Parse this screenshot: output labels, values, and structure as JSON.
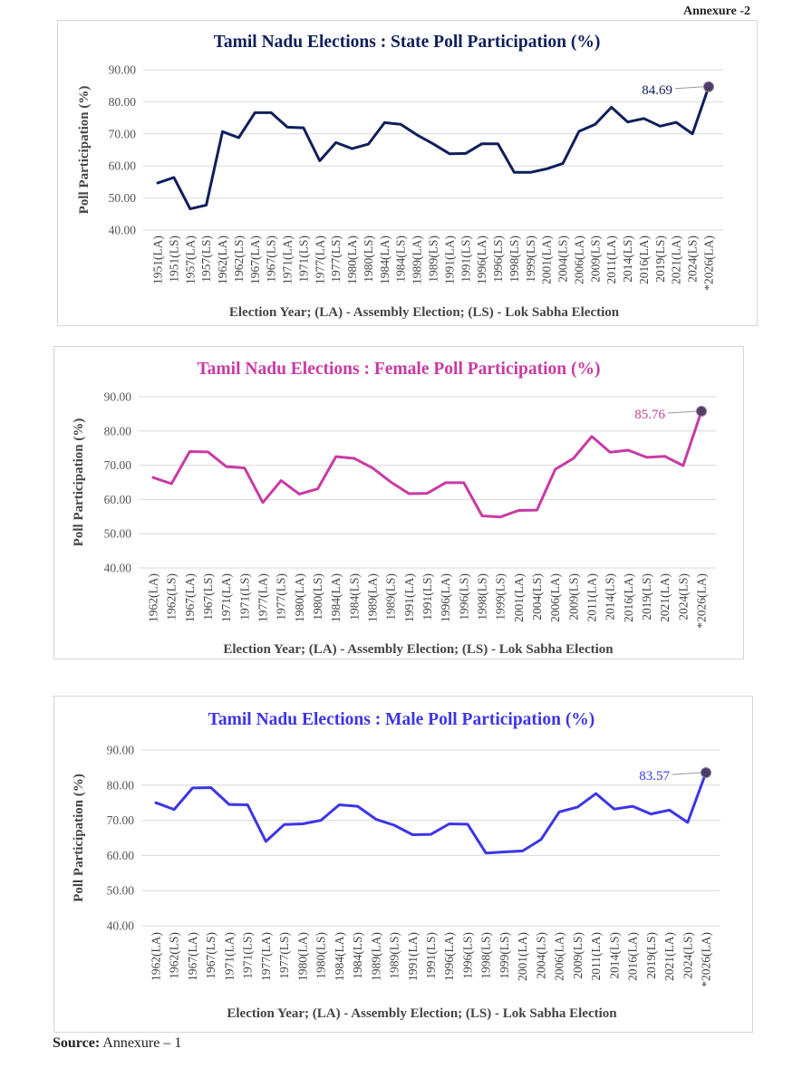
{
  "annexure": "Annexure -2",
  "source": {
    "label": "Source:",
    "text": "Annexure – 1"
  },
  "chart_data": [
    {
      "type": "line",
      "title": "Tamil Nadu Elections : State Poll Participation (%)",
      "xlabel": "Election Year; (LA) - Assembly Election; (LS) - Lok Sabha Election",
      "ylabel": "Poll Participation (%)",
      "ylim": [
        40,
        90
      ],
      "yticks": [
        "40.00",
        "50.00",
        "60.00",
        "70.00",
        "80.00",
        "90.00"
      ],
      "grid": true,
      "color": "#0f1f5c",
      "categories": [
        "1951(LA)",
        "1951(LS)",
        "1957(LA)",
        "1957(LS)",
        "1962(LA)",
        "1962(LS)",
        "1967(LA)",
        "1967(LS)",
        "1971(LA)",
        "1971(LS)",
        "1977(LA)",
        "1977(LS)",
        "1980(LA)",
        "1980(LS)",
        "1984(LA)",
        "1984(LS)",
        "1989(LA)",
        "1989(LS)",
        "1991(LA)",
        "1991(LS)",
        "1996(LA)",
        "1996(LS)",
        "1998(LS)",
        "1999(LS)",
        "2001(LA)",
        "2004(LS)",
        "2006(LA)",
        "2009(LS)",
        "2011(LA)",
        "2014(LS)",
        "2016(LA)",
        "2019(LS)",
        "2021(LA)",
        "2024(LS)",
        "*2026(LA)"
      ],
      "values": [
        54.7,
        56.4,
        46.6,
        47.8,
        70.7,
        68.8,
        76.6,
        76.6,
        72.1,
        71.9,
        61.6,
        67.3,
        65.4,
        66.8,
        73.5,
        73.0,
        69.7,
        66.9,
        63.8,
        63.9,
        66.9,
        66.9,
        58.0,
        58.0,
        59.1,
        60.8,
        70.8,
        73.0,
        78.3,
        73.7,
        74.8,
        72.4,
        73.6,
        70.0,
        84.69
      ],
      "last_label": "84.69"
    },
    {
      "type": "line",
      "title": "Tamil Nadu Elections : Female Poll Participation (%)",
      "xlabel": "Election Year; (LA) - Assembly Election; (LS) - Lok Sabha Election",
      "ylabel": "Poll Participation (%)",
      "ylim": [
        40,
        90
      ],
      "yticks": [
        "40.00",
        "50.00",
        "60.00",
        "70.00",
        "80.00",
        "90.00"
      ],
      "grid": true,
      "color": "#c93aa4",
      "categories": [
        "1962(LA)",
        "1962(LS)",
        "1967(LA)",
        "1967(LS)",
        "1971(LA)",
        "1971(LS)",
        "1977(LA)",
        "1977(LS)",
        "1980(LA)",
        "1980(LS)",
        "1984(LA)",
        "1984(LS)",
        "1989(LA)",
        "1989(LS)",
        "1991(LA)",
        "1991(LS)",
        "1996(LA)",
        "1996(LS)",
        "1998(LS)",
        "1999(LS)",
        "2001(LA)",
        "2004(LS)",
        "2006(LA)",
        "2009(LS)",
        "2011(LA)",
        "2014(LS)",
        "2016(LA)",
        "2019(LS)",
        "2021(LA)",
        "2024(LS)",
        "*2026(LA)"
      ],
      "values": [
        66.4,
        64.6,
        74.0,
        73.9,
        69.6,
        69.2,
        59.1,
        65.5,
        61.6,
        63.1,
        72.5,
        72.0,
        69.2,
        65.1,
        61.7,
        61.8,
        64.9,
        64.9,
        55.2,
        54.9,
        56.8,
        56.9,
        68.8,
        72.0,
        78.4,
        73.8,
        74.4,
        72.3,
        72.6,
        69.9,
        85.76
      ],
      "last_label": "85.76"
    },
    {
      "type": "line",
      "title": "Tamil Nadu Elections : Male Poll Participation (%)",
      "xlabel": "Election Year; (LA) - Assembly Election; (LS) - Lok Sabha Election",
      "ylabel": "Poll Participation (%)",
      "ylim": [
        40,
        90
      ],
      "yticks": [
        "40.00",
        "50.00",
        "60.00",
        "70.00",
        "80.00",
        "90.00"
      ],
      "grid": true,
      "color": "#3d35e6",
      "categories": [
        "1962(LA)",
        "1962(LS)",
        "1967(LA)",
        "1967(LS)",
        "1971(LA)",
        "1971(LS)",
        "1977(LA)",
        "1977(LS)",
        "1980(LA)",
        "1980(LS)",
        "1984(LA)",
        "1984(LS)",
        "1989(LA)",
        "1989(LS)",
        "1991(LA)",
        "1991(LS)",
        "1996(LA)",
        "1996(LS)",
        "1998(LS)",
        "1999(LS)",
        "2001(LA)",
        "2004(LS)",
        "2006(LA)",
        "2009(LS)",
        "2011(LA)",
        "2014(LS)",
        "2016(LA)",
        "2019(LS)",
        "2021(LA)",
        "2024(LS)",
        "*2026(LA)"
      ],
      "values": [
        75.0,
        73.1,
        79.2,
        79.3,
        74.5,
        74.4,
        64.0,
        68.8,
        69.0,
        70.0,
        74.4,
        74.0,
        70.3,
        68.6,
        65.9,
        66.0,
        69.0,
        68.9,
        60.7,
        61.0,
        61.3,
        64.5,
        72.4,
        73.8,
        77.6,
        73.2,
        74.0,
        71.8,
        72.9,
        69.4,
        83.57
      ],
      "last_label": "83.57"
    }
  ]
}
